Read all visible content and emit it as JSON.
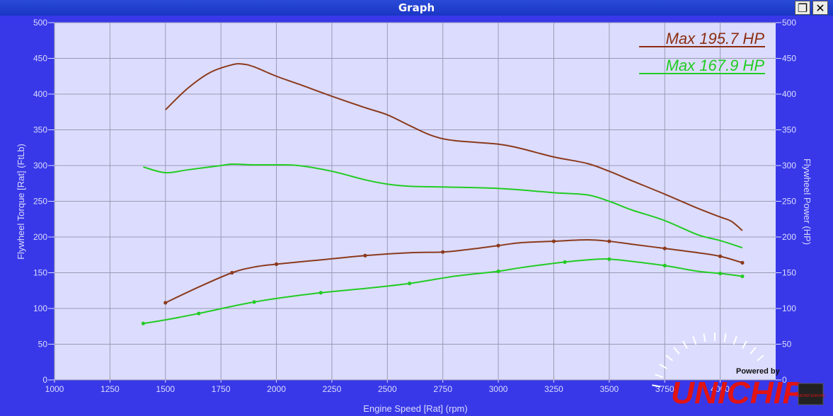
{
  "window": {
    "title": "Graph",
    "restore_icon": "restore-icon",
    "close_icon": "close-icon"
  },
  "chart_data": {
    "type": "line",
    "xlabel": "Engine Speed [Rat] (rpm)",
    "ylabel_left": "Flywheel Torque [Rat] (FtLb)",
    "ylabel_right": "Flywheel Power (HP)",
    "xlim": [
      1000,
      4250
    ],
    "ylim": [
      0,
      500
    ],
    "x_ticks": [
      1000,
      1250,
      1500,
      1750,
      2000,
      2250,
      2500,
      2750,
      3000,
      3250,
      3500,
      3750,
      4000
    ],
    "y_ticks": [
      0,
      50,
      100,
      150,
      200,
      250,
      300,
      350,
      400,
      450,
      500
    ],
    "grid": true,
    "annotations": [
      {
        "text": "Max 195.7 HP",
        "color": "#8b2e12"
      },
      {
        "text": "Max 167.9 HP",
        "color": "#22cc22"
      }
    ],
    "series": [
      {
        "color": "#8b3a1c",
        "marker": false,
        "x": [
          1500,
          1600,
          1700,
          1800,
          1850,
          1900,
          2000,
          2100,
          2250,
          2400,
          2500,
          2600,
          2700,
          2800,
          3000,
          3100,
          3250,
          3400,
          3500,
          3600,
          3750,
          3900,
          4000,
          4050,
          4100
        ],
        "y": [
          378,
          408,
          430,
          441,
          442,
          438,
          425,
          414,
          397,
          381,
          371,
          356,
          342,
          335,
          330,
          324,
          312,
          303,
          292,
          279,
          260,
          240,
          228,
          222,
          209
        ]
      },
      {
        "color": "#22cc22",
        "marker": false,
        "x": [
          1400,
          1500,
          1600,
          1750,
          1800,
          1900,
          2000,
          2100,
          2250,
          2400,
          2500,
          2600,
          2750,
          2900,
          3000,
          3100,
          3250,
          3400,
          3500,
          3600,
          3750,
          3900,
          4000,
          4100
        ],
        "y": [
          298,
          290,
          294,
          300,
          302,
          301,
          301,
          300,
          292,
          280,
          274,
          271,
          270,
          269,
          268,
          266,
          262,
          259,
          250,
          238,
          223,
          203,
          195,
          185
        ]
      },
      {
        "color": "#8b3a1c",
        "marker": true,
        "x": [
          1500,
          1650,
          1800,
          1900,
          2000,
          2200,
          2400,
          2600,
          2750,
          2850,
          3000,
          3100,
          3250,
          3400,
          3500,
          3600,
          3750,
          3900,
          4000,
          4100
        ],
        "y": [
          108,
          130,
          150,
          158,
          162,
          168,
          174,
          178,
          179,
          182,
          188,
          192,
          194,
          196,
          194,
          190,
          184,
          178,
          173,
          164
        ]
      },
      {
        "color": "#22cc22",
        "marker": true,
        "x": [
          1400,
          1500,
          1650,
          1800,
          1900,
          2000,
          2200,
          2400,
          2600,
          2800,
          3000,
          3100,
          3300,
          3450,
          3500,
          3600,
          3750,
          3900,
          4000,
          4100
        ],
        "y": [
          79,
          84,
          93,
          103,
          109,
          114,
          122,
          128,
          135,
          145,
          152,
          157,
          165,
          169,
          169,
          166,
          160,
          152,
          149,
          145
        ]
      }
    ]
  },
  "branding": {
    "powered_by": "Powered by",
    "logo": "UNICHIP",
    "badge": "UNICHIP EUROPE"
  }
}
